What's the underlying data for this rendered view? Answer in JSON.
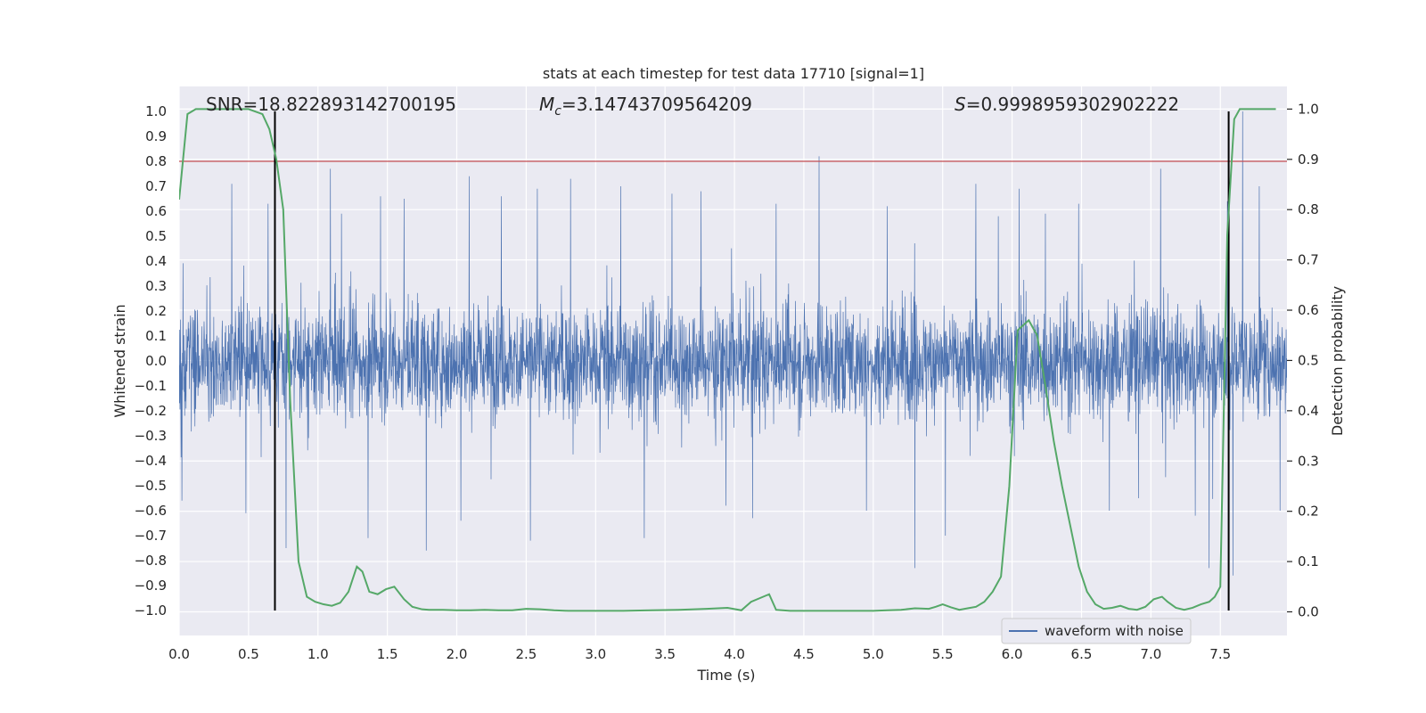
{
  "chart_data": {
    "type": "line",
    "title": "stats at each timestep for test data 17710 [signal=1]",
    "xlabel": "Time (s)",
    "ylabel": "Whitened strain",
    "ylabel_right": "Detection probability",
    "xlim": [
      0.0,
      7.98
    ],
    "ylim": [
      -1.1,
      1.1
    ],
    "ylim_right": [
      -0.047,
      1.045
    ],
    "x_ticks": [
      0.0,
      0.5,
      1.0,
      1.5,
      2.0,
      2.5,
      3.0,
      3.5,
      4.0,
      4.5,
      5.0,
      5.5,
      6.0,
      6.5,
      7.0,
      7.5
    ],
    "x_tick_labels": [
      "0.0",
      "0.5",
      "1.0",
      "1.5",
      "2.0",
      "2.5",
      "3.0",
      "3.5",
      "4.0",
      "4.5",
      "5.0",
      "5.5",
      "6.0",
      "6.5",
      "7.0",
      "7.5"
    ],
    "y_ticks": [
      1.0,
      0.9,
      0.8,
      0.7,
      0.6,
      0.5,
      0.4,
      0.3,
      0.2,
      0.1,
      0.0,
      -0.1,
      -0.2,
      -0.3,
      -0.4,
      -0.5,
      -0.6,
      -0.7,
      -0.8,
      -0.9,
      -1.0
    ],
    "y_tick_labels": [
      "1.0",
      "0.9",
      "0.8",
      "0.7",
      "0.6",
      "0.5",
      "0.4",
      "0.3",
      "0.2",
      "0.1",
      "0.0",
      "−0.1",
      "−0.2",
      "−0.3",
      "−0.4",
      "−0.5",
      "−0.6",
      "−0.7",
      "−0.8",
      "−0.9",
      "−1.0"
    ],
    "y_right_ticks": [
      1.0,
      0.9,
      0.8,
      0.7,
      0.6,
      0.5,
      0.4,
      0.3,
      0.2,
      0.1,
      0.0
    ],
    "y_right_tick_labels": [
      "1.0",
      "0.9",
      "0.8",
      "0.7",
      "0.6",
      "0.5",
      "0.4",
      "0.3",
      "0.2",
      "0.1",
      "0.0"
    ],
    "grid": true,
    "legend": {
      "placement": "lower-right",
      "entries": [
        {
          "label": "waveform with noise",
          "color": "#4c72b0"
        }
      ]
    },
    "annotations": {
      "snr": "SNR=18.822893142700195",
      "mc_symbol": "M",
      "mc_subscript": "c",
      "mc_value": "=3.14743709564209",
      "s_symbol": "S",
      "s_value": "=0.9998959302902222"
    },
    "threshold": {
      "y": 0.8,
      "color": "#c44e52"
    },
    "vertical_markers": {
      "x": [
        0.69,
        7.56
      ],
      "y_range": [
        -1.0,
        1.0
      ],
      "color": "#000000"
    },
    "series": [
      {
        "name": "waveform with noise",
        "axis": "left",
        "color": "#4c72b0",
        "typical_envelope": 0.2,
        "peaks": [
          {
            "x": 0.02,
            "y": -0.56
          },
          {
            "x": 0.38,
            "y": 0.71
          },
          {
            "x": 0.48,
            "y": -0.61
          },
          {
            "x": 0.64,
            "y": 0.63
          },
          {
            "x": 0.77,
            "y": -0.75
          },
          {
            "x": 1.09,
            "y": 0.77
          },
          {
            "x": 1.17,
            "y": 0.59
          },
          {
            "x": 1.36,
            "y": -0.71
          },
          {
            "x": 1.45,
            "y": 0.66
          },
          {
            "x": 1.62,
            "y": 0.65
          },
          {
            "x": 1.78,
            "y": -0.76
          },
          {
            "x": 2.03,
            "y": -0.64
          },
          {
            "x": 2.09,
            "y": 0.74
          },
          {
            "x": 2.32,
            "y": 0.66
          },
          {
            "x": 2.53,
            "y": -0.72
          },
          {
            "x": 2.58,
            "y": 0.69
          },
          {
            "x": 2.82,
            "y": 0.73
          },
          {
            "x": 3.18,
            "y": 0.7
          },
          {
            "x": 3.35,
            "y": -0.71
          },
          {
            "x": 3.55,
            "y": 0.67
          },
          {
            "x": 3.76,
            "y": 0.68
          },
          {
            "x": 3.94,
            "y": -0.58
          },
          {
            "x": 4.13,
            "y": -0.63
          },
          {
            "x": 4.3,
            "y": 0.63
          },
          {
            "x": 4.61,
            "y": 0.82
          },
          {
            "x": 4.95,
            "y": -0.6
          },
          {
            "x": 5.1,
            "y": 0.62
          },
          {
            "x": 5.3,
            "y": -0.83
          },
          {
            "x": 5.52,
            "y": -0.7
          },
          {
            "x": 5.74,
            "y": 0.71
          },
          {
            "x": 5.9,
            "y": 0.58
          },
          {
            "x": 6.05,
            "y": 0.69
          },
          {
            "x": 6.24,
            "y": 0.59
          },
          {
            "x": 6.48,
            "y": 0.63
          },
          {
            "x": 6.7,
            "y": -0.6
          },
          {
            "x": 6.91,
            "y": -0.55
          },
          {
            "x": 7.07,
            "y": 0.77
          },
          {
            "x": 7.32,
            "y": -0.62
          },
          {
            "x": 7.42,
            "y": -0.83
          },
          {
            "x": 7.55,
            "y": 0.64
          },
          {
            "x": 7.59,
            "y": -0.86
          },
          {
            "x": 7.66,
            "y": -1.0
          },
          {
            "x": 7.66,
            "y": 1.0
          },
          {
            "x": 7.78,
            "y": 0.7
          },
          {
            "x": 7.93,
            "y": -0.6
          }
        ]
      },
      {
        "name": "",
        "axis": "right",
        "color": "#55a868",
        "x": [
          0.0,
          0.06,
          0.12,
          0.2,
          0.3,
          0.4,
          0.5,
          0.6,
          0.65,
          0.7,
          0.75,
          0.8,
          0.86,
          0.92,
          0.98,
          1.04,
          1.1,
          1.16,
          1.22,
          1.28,
          1.32,
          1.37,
          1.43,
          1.49,
          1.55,
          1.62,
          1.68,
          1.75,
          1.8,
          1.9,
          2.0,
          2.1,
          2.2,
          2.3,
          2.4,
          2.5,
          2.6,
          2.7,
          2.8,
          2.9,
          3.0,
          3.2,
          3.4,
          3.6,
          3.8,
          3.95,
          4.05,
          4.12,
          4.25,
          4.3,
          4.4,
          4.6,
          4.8,
          5.0,
          5.1,
          5.2,
          5.3,
          5.4,
          5.45,
          5.5,
          5.56,
          5.62,
          5.68,
          5.74,
          5.8,
          5.86,
          5.92,
          5.98,
          6.04,
          6.12,
          6.18,
          6.24,
          6.3,
          6.36,
          6.42,
          6.48,
          6.54,
          6.6,
          6.66,
          6.72,
          6.78,
          6.84,
          6.9,
          6.96,
          7.02,
          7.08,
          7.12,
          7.18,
          7.24,
          7.3,
          7.36,
          7.42,
          7.46,
          7.5,
          7.55,
          7.6,
          7.64,
          7.68,
          7.72,
          7.8,
          7.86,
          7.9
        ],
        "y": [
          0.82,
          0.99,
          1.0,
          1.0,
          1.0,
          1.0,
          1.0,
          0.99,
          0.96,
          0.9,
          0.8,
          0.42,
          0.1,
          0.03,
          0.02,
          0.015,
          0.012,
          0.018,
          0.04,
          0.09,
          0.08,
          0.04,
          0.035,
          0.045,
          0.05,
          0.025,
          0.01,
          0.005,
          0.004,
          0.004,
          0.003,
          0.003,
          0.004,
          0.003,
          0.003,
          0.006,
          0.005,
          0.003,
          0.002,
          0.002,
          0.002,
          0.002,
          0.003,
          0.004,
          0.006,
          0.008,
          0.003,
          0.02,
          0.035,
          0.004,
          0.002,
          0.002,
          0.002,
          0.002,
          0.003,
          0.004,
          0.007,
          0.006,
          0.01,
          0.015,
          0.009,
          0.004,
          0.007,
          0.01,
          0.02,
          0.04,
          0.07,
          0.25,
          0.56,
          0.58,
          0.55,
          0.45,
          0.34,
          0.25,
          0.17,
          0.09,
          0.04,
          0.015,
          0.006,
          0.008,
          0.012,
          0.006,
          0.004,
          0.01,
          0.025,
          0.03,
          0.02,
          0.008,
          0.004,
          0.008,
          0.015,
          0.02,
          0.03,
          0.05,
          0.75,
          0.98,
          1.0,
          1.0,
          1.0,
          1.0,
          1.0,
          1.0
        ]
      }
    ]
  }
}
